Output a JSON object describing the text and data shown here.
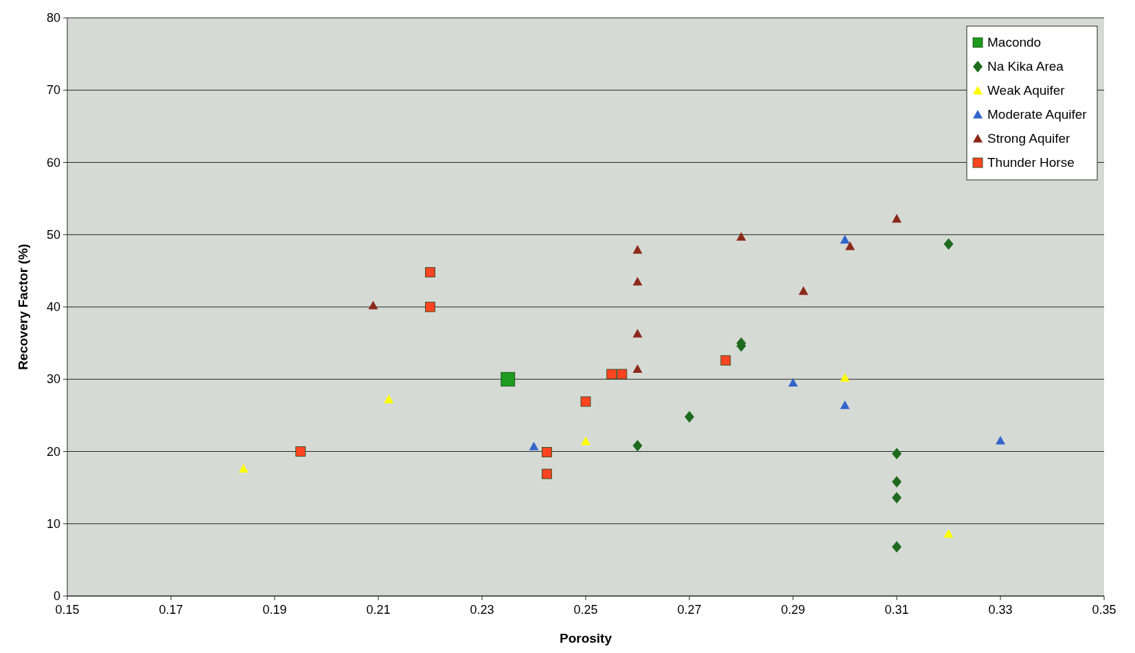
{
  "chart_data": {
    "type": "scatter",
    "xlabel": "Porosity",
    "ylabel": "Recovery Factor (%)",
    "xlim": [
      0.15,
      0.35
    ],
    "xticks": [
      0.15,
      0.17,
      0.19,
      0.21,
      0.23,
      0.25,
      0.27,
      0.29,
      0.31,
      0.33,
      0.35
    ],
    "ylim": [
      0,
      80
    ],
    "yticks": [
      0,
      10,
      20,
      30,
      40,
      50,
      60,
      70,
      80
    ],
    "grid": "y",
    "legend": "top right",
    "series": [
      {
        "name": "Macondo",
        "color": "#1e9a1e",
        "marker": "square",
        "x": [
          0.235
        ],
        "values": [
          30
        ]
      },
      {
        "name": "Na Kika Area",
        "color": "#1e6b1e",
        "marker": "diamond",
        "x": [
          0.32,
          0.28,
          0.28,
          0.27,
          0.26,
          0.31,
          0.31,
          0.31,
          0.31
        ],
        "values": [
          48.7,
          35,
          34.6,
          24.8,
          20.8,
          19.7,
          15.8,
          13.6,
          6.8
        ]
      },
      {
        "name": "Weak Aquifer",
        "color": "#ffff00",
        "marker": "triangle",
        "x": [
          0.184,
          0.212,
          0.25,
          0.3,
          0.32
        ],
        "values": [
          17.6,
          27.2,
          21.4,
          30.2,
          8.6
        ]
      },
      {
        "name": "Moderate Aquifer",
        "color": "#3366cc",
        "marker": "triangle",
        "x": [
          0.24,
          0.29,
          0.3,
          0.3,
          0.33
        ],
        "values": [
          20.7,
          29.5,
          26.4,
          49.3,
          21.5
        ]
      },
      {
        "name": "Strong Aquifer",
        "color": "#8b2a1a",
        "marker": "triangle",
        "x": [
          0.209,
          0.26,
          0.26,
          0.26,
          0.26,
          0.28,
          0.292,
          0.301,
          0.31
        ],
        "values": [
          40.2,
          47.9,
          43.5,
          36.3,
          31.4,
          49.7,
          42.2,
          48.4,
          52.2
        ]
      },
      {
        "name": "Thunder Horse",
        "color": "#ff4422",
        "marker": "square",
        "x": [
          0.22,
          0.22,
          0.195,
          0.2425,
          0.2425,
          0.25,
          0.255,
          0.257,
          0.277
        ],
        "values": [
          44.8,
          40,
          20,
          19.9,
          16.9,
          26.9,
          30.7,
          30.7,
          32.6
        ]
      }
    ]
  }
}
